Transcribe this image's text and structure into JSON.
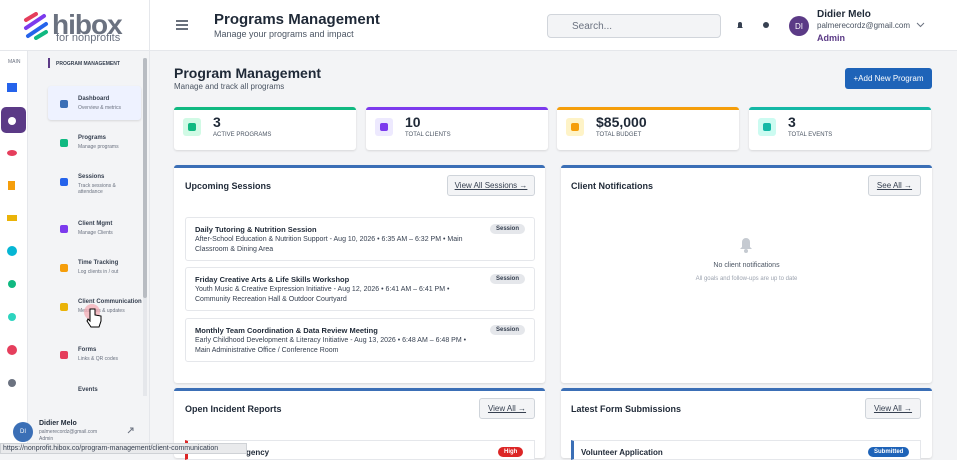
{
  "logo": {
    "brand": "hibox",
    "tagline": "for nonprofits"
  },
  "rail": {
    "label": "MAIN"
  },
  "sidebar": {
    "heading": "PROGRAM MANAGEMENT",
    "items": [
      {
        "title": "Dashboard",
        "subtitle": "Overview & metrics"
      },
      {
        "title": "Programs",
        "subtitle": "Manage programs"
      },
      {
        "title": "Sessions",
        "subtitle": "Track sessions & attendance"
      },
      {
        "title": "Client Mgmt",
        "subtitle": "Manage Clients"
      },
      {
        "title": "Time Tracking",
        "subtitle": "Log clients in / out"
      },
      {
        "title": "Client Communication",
        "subtitle": "Messages & updates"
      },
      {
        "title": "Forms",
        "subtitle": "Links & QR codes"
      },
      {
        "title": "Events",
        "subtitle": ""
      }
    ],
    "user": {
      "initials": "DI",
      "name": "Didier Melo",
      "email": "palmerecordz@gmail.com",
      "role": "Admin"
    }
  },
  "header": {
    "title": "Programs Management",
    "subtitle": "Manage your programs and impact",
    "search_placeholder": "Search...",
    "user": {
      "initials": "DI",
      "name": "Didier Melo",
      "email": "palmerecordz@gmail.com",
      "role": "Admin"
    }
  },
  "main": {
    "title": "Program Management",
    "subtitle": "Manage and track all programs",
    "add_button": "+Add New Program",
    "stats": [
      {
        "value": "3",
        "label": "ACTIVE PROGRAMS"
      },
      {
        "value": "10",
        "label": "TOTAL CLIENTS"
      },
      {
        "value": "$85,000",
        "label": "TOTAL BUDGET"
      },
      {
        "value": "3",
        "label": "TOTAL EVENTS"
      }
    ],
    "sessions": {
      "title": "Upcoming Sessions",
      "button": "View All Sessions →",
      "items": [
        {
          "title": "Daily Tutoring & Nutrition Session",
          "detail": "After-School Education & Nutrition Support - Aug 10, 2026 • 6:35 AM – 6:32 PM • Main Classroom & Dining Area",
          "badge": "Session"
        },
        {
          "title": "Friday Creative Arts & Life Skills Workshop",
          "detail": "Youth Music & Creative Expression Initiative - Aug 12, 2026 • 6:41 AM – 6:41 PM • Community Recreation Hall & Outdoor Courtyard",
          "badge": "Session"
        },
        {
          "title": "Monthly Team Coordination & Data Review Meeting",
          "detail": "Early Childhood Development & Literacy Initiative - Aug 13, 2026 • 6:48 AM – 6:48 PM • Main Administrative Office / Conference Room",
          "badge": "Session"
        }
      ]
    },
    "notifications": {
      "title": "Client Notifications",
      "button": "See All →",
      "empty_title": "No client notifications",
      "empty_text": "All goals and follow-ups are up to date"
    },
    "incidents": {
      "title": "Open Incident Reports",
      "button": "View All →",
      "items": [
        {
          "title": "gency",
          "badge": "High"
        }
      ]
    },
    "forms": {
      "title": "Latest Form Submissions",
      "button": "View All →",
      "items": [
        {
          "title": "Volunteer Application",
          "badge": "Submitted"
        }
      ]
    }
  },
  "status_bar": {
    "url": "https://nonprofit.hibox.co/program-management/client-communication"
  }
}
